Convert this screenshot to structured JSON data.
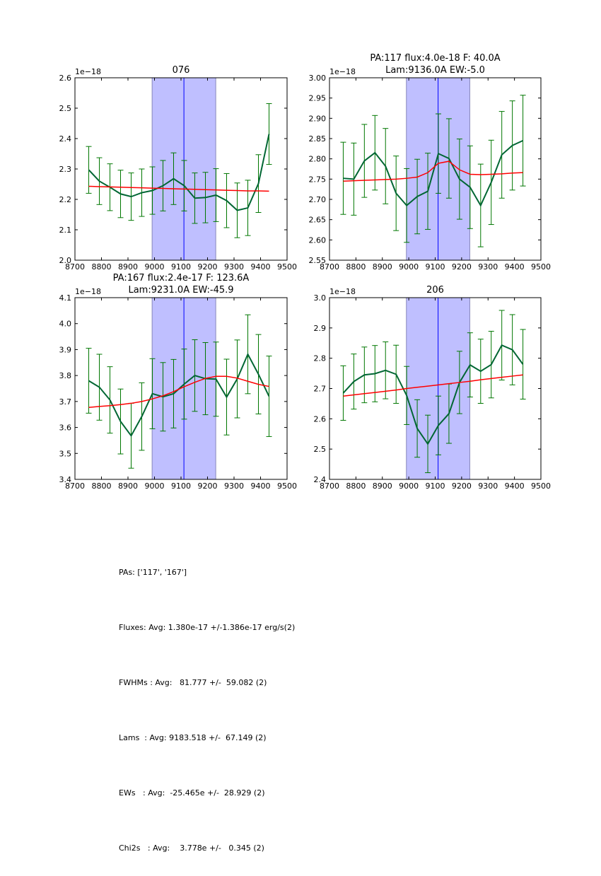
{
  "figure": {
    "colors": {
      "data_line": "#006633",
      "errorbar": "#007700",
      "fit_line": "#ff0000",
      "band_fill": "#bfbfff",
      "band_edge": "#8888bb",
      "center_line": "#0000ff",
      "axes": "#000000"
    }
  },
  "chart_data": [
    {
      "type": "line",
      "panel": "top-left",
      "title": "076",
      "title_line2": "",
      "y_offset_label": "1e−18",
      "xlim": [
        8700,
        9500
      ],
      "ylim": [
        2.0,
        2.6
      ],
      "xticks": [
        "8700",
        "8800",
        "8900",
        "9000",
        "9100",
        "9200",
        "9300",
        "9400",
        "9500"
      ],
      "yticks": [
        "2.0",
        "2.1",
        "2.2",
        "2.3",
        "2.4",
        "2.5",
        "2.6"
      ],
      "ytick_values": [
        2.0,
        2.1,
        2.2,
        2.3,
        2.4,
        2.5,
        2.6
      ],
      "band": [
        8991,
        9231
      ],
      "center_line": 9111,
      "x": [
        8752,
        8792,
        8832,
        8872,
        8912,
        8952,
        8992,
        9032,
        9072,
        9112,
        9152,
        9192,
        9232,
        9272,
        9312,
        9352,
        9392,
        9432
      ],
      "series": [
        {
          "name": "flux",
          "values": [
            2.297,
            2.26,
            2.24,
            2.218,
            2.209,
            2.222,
            2.229,
            2.245,
            2.268,
            2.245,
            2.204,
            2.206,
            2.214,
            2.196,
            2.164,
            2.172,
            2.252,
            2.415
          ],
          "errors": [
            0.077,
            0.077,
            0.077,
            0.078,
            0.078,
            0.078,
            0.078,
            0.083,
            0.085,
            0.083,
            0.083,
            0.083,
            0.087,
            0.089,
            0.09,
            0.091,
            0.095,
            0.1
          ]
        },
        {
          "name": "fit",
          "values": [
            2.243,
            2.242,
            2.241,
            2.24,
            2.239,
            2.238,
            2.237,
            2.236,
            2.235,
            2.234,
            2.233,
            2.232,
            2.231,
            2.23,
            2.229,
            2.228,
            2.228,
            2.227
          ]
        }
      ]
    },
    {
      "type": "line",
      "panel": "top-right",
      "title": "PA:117 flux:4.0e-18 F: 40.0A",
      "title_line2": "Lam:9136.0A EW:-5.0",
      "y_offset_label": "1e−18",
      "xlim": [
        8700,
        9500
      ],
      "ylim": [
        2.55,
        3.0
      ],
      "xticks": [
        "8700",
        "8800",
        "8900",
        "9000",
        "9100",
        "9200",
        "9300",
        "9400",
        "9500"
      ],
      "yticks": [
        "2.55",
        "2.60",
        "2.65",
        "2.70",
        "2.75",
        "2.80",
        "2.85",
        "2.90",
        "2.95",
        "3.00"
      ],
      "ytick_values": [
        2.55,
        2.6,
        2.65,
        2.7,
        2.75,
        2.8,
        2.85,
        2.9,
        2.95,
        3.0
      ],
      "band": [
        8991,
        9231
      ],
      "center_line": 9111,
      "x": [
        8752,
        8792,
        8832,
        8872,
        8912,
        8952,
        8992,
        9032,
        9072,
        9112,
        9152,
        9192,
        9232,
        9272,
        9312,
        9352,
        9392,
        9432
      ],
      "series": [
        {
          "name": "flux",
          "values": [
            2.752,
            2.75,
            2.795,
            2.815,
            2.782,
            2.715,
            2.685,
            2.707,
            2.72,
            2.813,
            2.801,
            2.75,
            2.73,
            2.685,
            2.742,
            2.81,
            2.833,
            2.845
          ],
          "errors": [
            0.089,
            0.089,
            0.09,
            0.092,
            0.093,
            0.092,
            0.091,
            0.092,
            0.094,
            0.098,
            0.098,
            0.099,
            0.102,
            0.102,
            0.104,
            0.107,
            0.11,
            0.112
          ]
        },
        {
          "name": "fit",
          "values": [
            2.745,
            2.746,
            2.747,
            2.748,
            2.749,
            2.75,
            2.752,
            2.755,
            2.766,
            2.789,
            2.794,
            2.773,
            2.762,
            2.761,
            2.762,
            2.763,
            2.765,
            2.766
          ]
        }
      ]
    },
    {
      "type": "line",
      "panel": "bottom-left",
      "title": "PA:167 flux:2.4e-17 F: 123.6A",
      "title_line2": "Lam:9231.0A EW:-45.9",
      "y_offset_label": "1e−18",
      "xlim": [
        8700,
        9500
      ],
      "ylim": [
        3.4,
        4.1
      ],
      "xticks": [
        "8700",
        "8800",
        "8900",
        "9000",
        "9100",
        "9200",
        "9300",
        "9400",
        "9500"
      ],
      "yticks": [
        "3.4",
        "3.5",
        "3.6",
        "3.7",
        "3.8",
        "3.9",
        "4.0",
        "4.1"
      ],
      "ytick_values": [
        3.4,
        3.5,
        3.6,
        3.7,
        3.8,
        3.9,
        4.0,
        4.1
      ],
      "band": [
        8991,
        9231
      ],
      "center_line": 9111,
      "x": [
        8752,
        8792,
        8832,
        8872,
        8912,
        8952,
        8992,
        9032,
        9072,
        9112,
        9152,
        9192,
        9232,
        9272,
        9312,
        9352,
        9392,
        9432
      ],
      "series": [
        {
          "name": "flux",
          "values": [
            3.78,
            3.755,
            3.706,
            3.623,
            3.568,
            3.642,
            3.73,
            3.718,
            3.73,
            3.767,
            3.8,
            3.788,
            3.786,
            3.717,
            3.787,
            3.882,
            3.805,
            3.72
          ],
          "errors": [
            0.125,
            0.127,
            0.128,
            0.125,
            0.125,
            0.13,
            0.135,
            0.132,
            0.132,
            0.135,
            0.138,
            0.139,
            0.143,
            0.146,
            0.15,
            0.152,
            0.153,
            0.155
          ]
        },
        {
          "name": "fit",
          "values": [
            3.677,
            3.681,
            3.684,
            3.688,
            3.693,
            3.7,
            3.71,
            3.722,
            3.738,
            3.757,
            3.774,
            3.789,
            3.797,
            3.797,
            3.79,
            3.778,
            3.766,
            3.758
          ]
        }
      ]
    },
    {
      "type": "line",
      "panel": "bottom-right",
      "title": "206",
      "title_line2": "",
      "y_offset_label": "1e−18",
      "xlim": [
        8700,
        9500
      ],
      "ylim": [
        2.4,
        3.0
      ],
      "xticks": [
        "8700",
        "8800",
        "8900",
        "9000",
        "9100",
        "9200",
        "9300",
        "9400",
        "9500"
      ],
      "yticks": [
        "2.4",
        "2.5",
        "2.6",
        "2.7",
        "2.8",
        "2.9",
        "3.0"
      ],
      "ytick_values": [
        2.4,
        2.5,
        2.6,
        2.7,
        2.8,
        2.9,
        3.0
      ],
      "band": [
        8991,
        9231
      ],
      "center_line": 9111,
      "x": [
        8752,
        8792,
        8832,
        8872,
        8912,
        8952,
        8992,
        9032,
        9072,
        9112,
        9152,
        9192,
        9232,
        9272,
        9312,
        9352,
        9392,
        9432
      ],
      "series": [
        {
          "name": "flux",
          "values": [
            2.685,
            2.723,
            2.745,
            2.749,
            2.76,
            2.747,
            2.677,
            2.568,
            2.517,
            2.578,
            2.617,
            2.72,
            2.778,
            2.757,
            2.779,
            2.843,
            2.828,
            2.78
          ],
          "errors": [
            0.09,
            0.091,
            0.092,
            0.093,
            0.094,
            0.096,
            0.096,
            0.095,
            0.095,
            0.097,
            0.098,
            0.103,
            0.106,
            0.106,
            0.11,
            0.115,
            0.116,
            0.115
          ]
        },
        {
          "name": "fit",
          "values": [
            2.675,
            2.679,
            2.683,
            2.687,
            2.691,
            2.695,
            2.7,
            2.704,
            2.708,
            2.712,
            2.716,
            2.72,
            2.724,
            2.729,
            2.733,
            2.737,
            2.741,
            2.745
          ]
        }
      ]
    }
  ],
  "stats": {
    "lines": [
      "PAs: ['117', '167']",
      "Fluxes: Avg: 1.380e-17 +/-1.386e-17 erg/s(2)",
      "FWHMs : Avg:   81.777 +/-  59.082 (2)",
      "Lams  : Avg: 9183.518 +/-  67.149 (2)",
      "EWs   : Avg:  -25.465e +/-  28.929 (2)",
      "Chi2s   : Avg:    3.778e +/-   0.345 (2)"
    ]
  }
}
